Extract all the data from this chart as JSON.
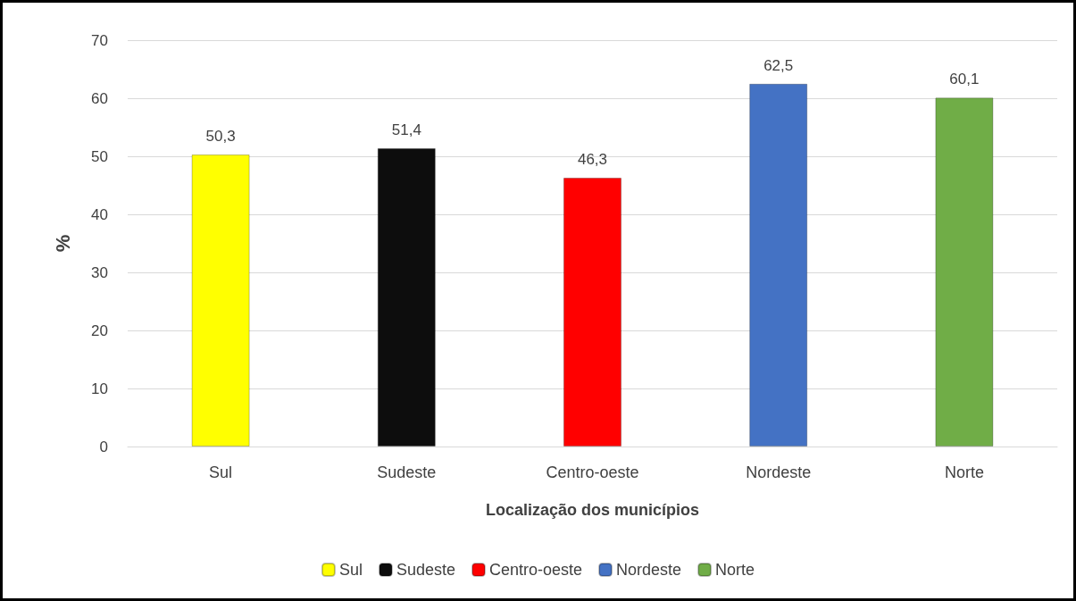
{
  "chart_data": {
    "type": "bar",
    "xlabel": "Localização dos municípios",
    "ylabel": "%",
    "categories": [
      "Sul",
      "Sudeste",
      "Centro-oeste",
      "Nordeste",
      "Norte"
    ],
    "series": [
      {
        "name": "Sul",
        "color": "#ffff00",
        "values": [
          50.3,
          null,
          null,
          null,
          null
        ],
        "value_labels": [
          "50,3",
          null,
          null,
          null,
          null
        ]
      },
      {
        "name": "Sudeste",
        "color": "#0d0d0d",
        "values": [
          null,
          51.4,
          null,
          null,
          null
        ],
        "value_labels": [
          null,
          "51,4",
          null,
          null,
          null
        ]
      },
      {
        "name": "Centro-oeste",
        "color": "#ff0000",
        "values": [
          null,
          null,
          46.3,
          null,
          null
        ],
        "value_labels": [
          null,
          null,
          "46,3",
          null,
          null
        ]
      },
      {
        "name": "Nordeste",
        "color": "#4472c4",
        "values": [
          null,
          null,
          null,
          62.5,
          null
        ],
        "value_labels": [
          null,
          null,
          null,
          "62,5",
          null
        ]
      },
      {
        "name": "Norte",
        "color": "#70ad47",
        "values": [
          null,
          null,
          null,
          null,
          60.1
        ],
        "value_labels": [
          null,
          null,
          null,
          null,
          "60,1"
        ]
      }
    ],
    "ylim": [
      0,
      70
    ],
    "yticks": [
      0,
      10,
      20,
      30,
      40,
      50,
      60,
      70
    ],
    "grid": "y",
    "legend": "bottom"
  }
}
